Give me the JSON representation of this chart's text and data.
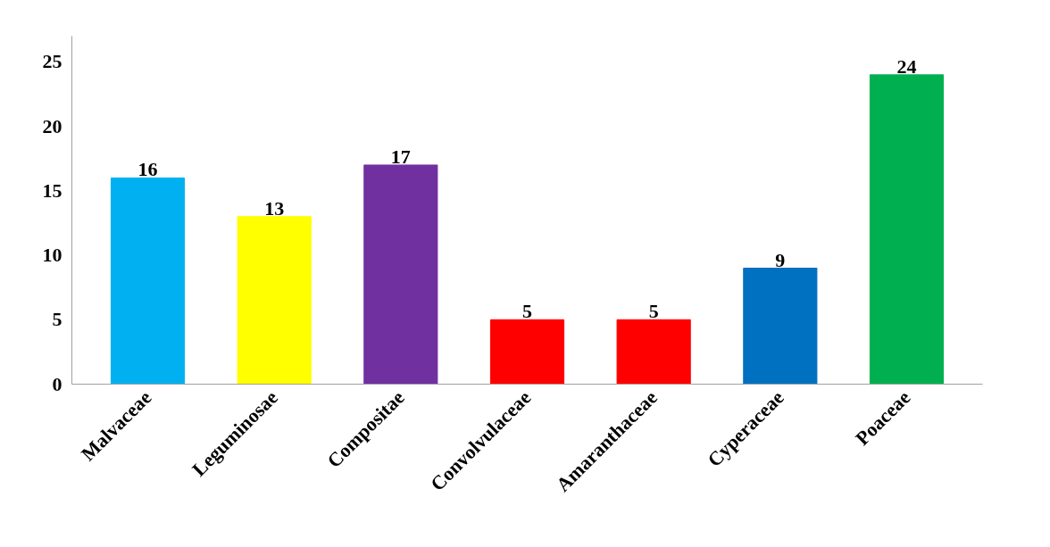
{
  "chart_data": {
    "type": "bar",
    "categories": [
      "Malvaceae",
      "Leguminosae",
      "Compositae",
      "Convolvulaceae",
      "Amaranthaceae",
      "Cyperaceae",
      "Poaceae"
    ],
    "values": [
      16,
      13,
      17,
      5,
      5,
      9,
      24
    ],
    "colors": [
      "#00b0f0",
      "#ffff00",
      "#7030a0",
      "#ff0000",
      "#ff0000",
      "#0070c0",
      "#00b050"
    ],
    "ylim": [
      0,
      27
    ],
    "yticks": [
      0,
      5,
      10,
      15,
      20,
      25
    ],
    "grid": false,
    "data_labels": true
  }
}
